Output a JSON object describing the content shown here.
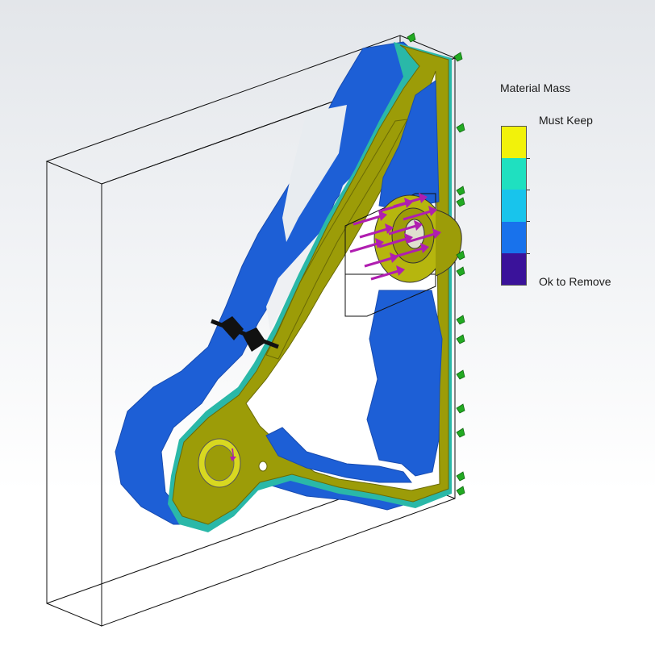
{
  "legend": {
    "title": "Material Mass",
    "top_label": "Must Keep",
    "bottom_label": "Ok to Remove",
    "colors": [
      "#f2f20a",
      "#1fe0c0",
      "#18c4ec",
      "#1872ec",
      "#3a129a"
    ]
  },
  "model": {
    "kept_material_color": "#9c9c08",
    "removable_material_color": "#1d5fd6",
    "transition_color": "#2ab8a8",
    "force_arrow_color": "#b01eb0",
    "fixture_color": "#22aa22",
    "bearing_load_color": "#111111"
  }
}
